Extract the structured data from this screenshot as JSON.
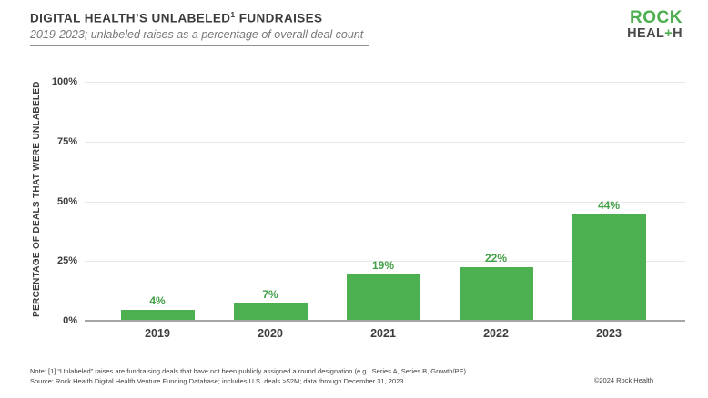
{
  "header": {
    "title_main": "DIGITAL HEALTH’S UNLABELED",
    "title_sup": "1",
    "title_rest": " FUNDRAISES",
    "subtitle": "2019-2023; unlabeled raises as a percentage of overall deal count"
  },
  "logo": {
    "line1": "ROCK",
    "line2_part1": "HEAL",
    "line2_plus": "+",
    "line2_part2": "H"
  },
  "chart_data": {
    "type": "bar",
    "title": "Digital Health's Unlabeled Fundraises",
    "categories": [
      "2019",
      "2020",
      "2021",
      "2022",
      "2023"
    ],
    "values": [
      4,
      7,
      19,
      22,
      44
    ],
    "value_labels": [
      "4%",
      "7%",
      "19%",
      "22%",
      "44%"
    ],
    "xlabel": "",
    "ylabel": "PERCENTAGE OF DEALS THAT WERE UNLABELED",
    "ylim": [
      0,
      100
    ],
    "yticks": [
      0,
      25,
      50,
      75,
      100
    ],
    "ytick_labels": [
      "0%",
      "25%",
      "50%",
      "75%",
      "100%"
    ],
    "grid": true,
    "legend": "none",
    "bar_color": "#4CAF50",
    "value_label_color": "#43A047"
  },
  "footer": {
    "note": "Note: [1] “Unlabeled” raises are fundraising deals that have not been publicly assigned a round designation (e.g., Series A, Series B, Growth/PE)",
    "source": "Source: Rock Health Digital Health Venture Funding Database; includes U.S. deals >$2M; data through December 31, 2023",
    "copyright": "©2024 Rock Health"
  },
  "colors": {
    "green": "#4CAF50",
    "label_green": "#43A047",
    "dark_text": "#3b3b3b",
    "gray_text": "#777777",
    "gridline": "#e8e8e8",
    "axis": "#a6a6a6"
  }
}
